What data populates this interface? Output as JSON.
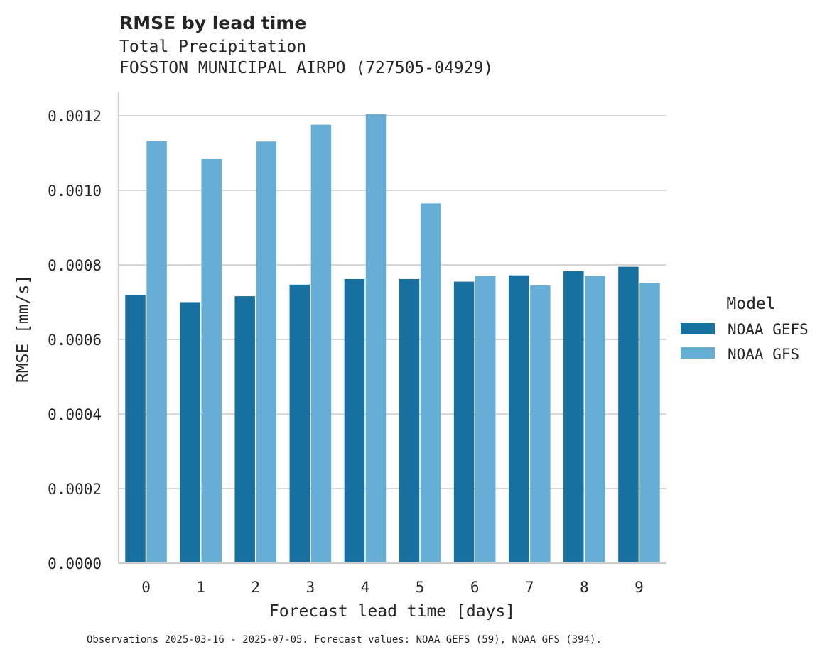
{
  "colors": {
    "background": "#ffffff",
    "grid": "#cccccc",
    "text": "#262626"
  },
  "chart_data": {
    "type": "bar",
    "title": "RMSE by lead time",
    "subtitle_lines": [
      "Total Precipitation",
      "FOSSTON MUNICIPAL AIRPO (727505-04929)"
    ],
    "xlabel": "Forecast lead time [days]",
    "ylabel": "RMSE [mm/s]",
    "categories": [
      "0",
      "1",
      "2",
      "3",
      "4",
      "5",
      "6",
      "7",
      "8",
      "9"
    ],
    "yticks": [
      "0.0000",
      "0.0002",
      "0.0004",
      "0.0006",
      "0.0008",
      "0.0010",
      "0.0012"
    ],
    "ytick_values": [
      0,
      0.0002,
      0.0004,
      0.0006,
      0.0008,
      0.001,
      0.0012
    ],
    "ylim": [
      0,
      0.00127
    ],
    "grid": "horizontal",
    "legend": {
      "title": "Model",
      "placement": "right"
    },
    "series": [
      {
        "name": "NOAA GEFS",
        "color": "#1770a0",
        "values": [
          0.000719,
          0.0007,
          0.000716,
          0.000747,
          0.000762,
          0.000762,
          0.000755,
          0.000772,
          0.000783,
          0.000795
        ]
      },
      {
        "name": "NOAA GFS",
        "color": "#67aed6",
        "values": [
          0.001132,
          0.001084,
          0.001131,
          0.001176,
          0.001204,
          0.000965,
          0.00077,
          0.000745,
          0.00077,
          0.000752
        ]
      }
    ],
    "footnote": "Observations 2025-03-16 - 2025-07-05. Forecast values: NOAA GEFS (59), NOAA GFS (394)."
  }
}
